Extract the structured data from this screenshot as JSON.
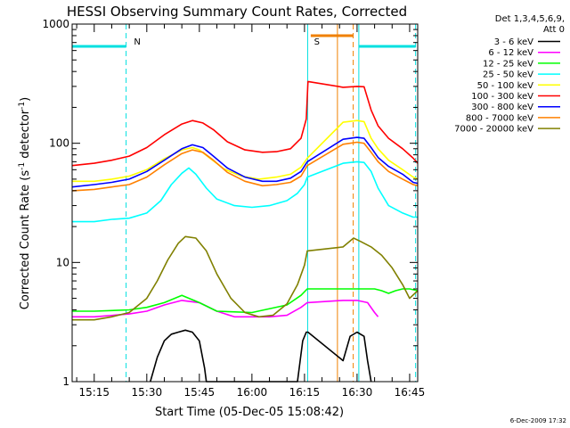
{
  "chart_data": {
    "type": "line",
    "title": "HESSI Observing Summary Count Rates, Corrected",
    "xlabel": "Start Time (05-Dec-05 15:08:42)",
    "ylabel_main": "Corrected Count Rate (s",
    "ylabel_sup1": "-1",
    "ylabel_mid": " detector",
    "ylabel_sup2": "-1",
    "ylabel_end": ")",
    "y_scale": "log",
    "ylim": [
      1,
      1000
    ],
    "y_ticks": [
      {
        "value": 1,
        "label": "1"
      },
      {
        "value": 10,
        "label": "10"
      },
      {
        "value": 100,
        "label": "100"
      },
      {
        "value": 1000,
        "label": "1000"
      }
    ],
    "x_unit": "minutes of day",
    "xlim": [
      908.7,
      1007.3
    ],
    "x_ticks": [
      {
        "value": 915,
        "label": "15:15"
      },
      {
        "value": 930,
        "label": "15:30"
      },
      {
        "value": 945,
        "label": "15:45"
      },
      {
        "value": 960,
        "label": "16:00"
      },
      {
        "value": 975,
        "label": "16:15"
      },
      {
        "value": 990,
        "label": "16:30"
      },
      {
        "value": 1005,
        "label": "16:45"
      }
    ],
    "legend": {
      "position": "right",
      "header_line1": "Det 1,3,4,5,6,9,",
      "header_line2": "Att 0"
    },
    "night_intervals": [
      [
        924.1,
        975.9
      ],
      [
        1006.7,
        1007.3
      ]
    ],
    "saa_interval": [
      984.4,
      988.9
    ],
    "annotations": [
      {
        "label": "N",
        "color": "#00e0e0",
        "x": 924.8
      },
      {
        "label": "S",
        "color": "#f08000",
        "x": 976.2
      }
    ],
    "series": [
      {
        "name": "3 - 6 keV",
        "color": "#000000",
        "points": [
          [
            931,
            1.0
          ],
          [
            933,
            1.6
          ],
          [
            935,
            2.2
          ],
          [
            937,
            2.5
          ],
          [
            939,
            2.6
          ],
          [
            941,
            2.7
          ],
          [
            943,
            2.6
          ],
          [
            945,
            2.2
          ],
          [
            946.5,
            1.3
          ],
          [
            947,
            1.0
          ],
          [
            973,
            1.0
          ],
          [
            974.5,
            2.2
          ],
          [
            975.5,
            2.6
          ],
          [
            976,
            2.6
          ],
          [
            986,
            1.5
          ],
          [
            988,
            2.4
          ],
          [
            990,
            2.6
          ],
          [
            992,
            2.4
          ],
          [
            993,
            1.5
          ],
          [
            994,
            1.0
          ]
        ]
      },
      {
        "name": "6 - 12 keV",
        "color": "#ff00ff",
        "points": [
          [
            908.7,
            3.5
          ],
          [
            915,
            3.5
          ],
          [
            925,
            3.7
          ],
          [
            930,
            3.9
          ],
          [
            935,
            4.4
          ],
          [
            940,
            4.8
          ],
          [
            945,
            4.6
          ],
          [
            950,
            3.9
          ],
          [
            955,
            3.5
          ],
          [
            965,
            3.5
          ],
          [
            970,
            3.6
          ],
          [
            974,
            4.2
          ],
          [
            975.8,
            4.6
          ],
          [
            986,
            4.8
          ],
          [
            990,
            4.8
          ],
          [
            993,
            4.6
          ],
          [
            995,
            3.8
          ],
          [
            996,
            3.5
          ]
        ]
      },
      {
        "name": "12 - 25 keV",
        "color": "#00ff00",
        "points": [
          [
            908.7,
            3.9
          ],
          [
            915,
            3.9
          ],
          [
            925,
            4.0
          ],
          [
            930,
            4.2
          ],
          [
            935,
            4.6
          ],
          [
            940,
            5.3
          ],
          [
            945,
            4.6
          ],
          [
            950,
            3.9
          ],
          [
            960,
            3.8
          ],
          [
            970,
            4.4
          ],
          [
            974,
            5.3
          ],
          [
            975.8,
            6.0
          ],
          [
            986,
            6.0
          ],
          [
            995,
            6.0
          ],
          [
            997,
            5.8
          ],
          [
            999,
            5.5
          ],
          [
            1001,
            5.8
          ],
          [
            1003,
            6.0
          ],
          [
            1005,
            6.0
          ],
          [
            1007.3,
            5.8
          ]
        ]
      },
      {
        "name": "25 - 50 keV",
        "color": "#00ffff",
        "points": [
          [
            908.7,
            22
          ],
          [
            915,
            22
          ],
          [
            920,
            23
          ],
          [
            925,
            23.5
          ],
          [
            930,
            26
          ],
          [
            934,
            33
          ],
          [
            937,
            45
          ],
          [
            940,
            56
          ],
          [
            942,
            62
          ],
          [
            944,
            55
          ],
          [
            947,
            42
          ],
          [
            950,
            34
          ],
          [
            955,
            30
          ],
          [
            960,
            29
          ],
          [
            965,
            30
          ],
          [
            970,
            33
          ],
          [
            973,
            38
          ],
          [
            975,
            45
          ],
          [
            975.8,
            52
          ],
          [
            986,
            68
          ],
          [
            990,
            70
          ],
          [
            992,
            69
          ],
          [
            994,
            58
          ],
          [
            996,
            42
          ],
          [
            999,
            30
          ],
          [
            1003,
            26
          ],
          [
            1006,
            24
          ],
          [
            1007.3,
            24
          ]
        ]
      },
      {
        "name": "50 - 100 keV",
        "color": "#ffff00",
        "points": [
          [
            908.7,
            48
          ],
          [
            915,
            48
          ],
          [
            920,
            50
          ],
          [
            925,
            53
          ],
          [
            930,
            60
          ],
          [
            935,
            74
          ],
          [
            940,
            88
          ],
          [
            943,
            92
          ],
          [
            945,
            88
          ],
          [
            948,
            75
          ],
          [
            952,
            61
          ],
          [
            957,
            53
          ],
          [
            962,
            50
          ],
          [
            967,
            52
          ],
          [
            971,
            55
          ],
          [
            974,
            63
          ],
          [
            975.8,
            75
          ],
          [
            986,
            150
          ],
          [
            990,
            155
          ],
          [
            992,
            152
          ],
          [
            994,
            110
          ],
          [
            996,
            90
          ],
          [
            999,
            72
          ],
          [
            1003,
            60
          ],
          [
            1006,
            52
          ],
          [
            1007.3,
            50
          ]
        ]
      },
      {
        "name": "100 - 300 keV",
        "color": "#ff0000",
        "points": [
          [
            908.7,
            65
          ],
          [
            915,
            68
          ],
          [
            920,
            72
          ],
          [
            925,
            78
          ],
          [
            930,
            92
          ],
          [
            935,
            118
          ],
          [
            940,
            145
          ],
          [
            943,
            155
          ],
          [
            946,
            148
          ],
          [
            949,
            130
          ],
          [
            953,
            103
          ],
          [
            958,
            88
          ],
          [
            963,
            84
          ],
          [
            967,
            85
          ],
          [
            971,
            90
          ],
          [
            974,
            110
          ],
          [
            975.5,
            160
          ],
          [
            976,
            330
          ],
          [
            986,
            295
          ],
          [
            990,
            300
          ],
          [
            992,
            298
          ],
          [
            994,
            190
          ],
          [
            996,
            140
          ],
          [
            999,
            110
          ],
          [
            1003,
            90
          ],
          [
            1006,
            75
          ],
          [
            1007.3,
            68
          ]
        ]
      },
      {
        "name": "300 - 800 keV",
        "color": "#0000ff",
        "points": [
          [
            908.7,
            43
          ],
          [
            915,
            45
          ],
          [
            920,
            47
          ],
          [
            925,
            50
          ],
          [
            930,
            58
          ],
          [
            935,
            72
          ],
          [
            940,
            90
          ],
          [
            943,
            97
          ],
          [
            946,
            92
          ],
          [
            949,
            78
          ],
          [
            953,
            62
          ],
          [
            958,
            52
          ],
          [
            963,
            48
          ],
          [
            967,
            48
          ],
          [
            971,
            51
          ],
          [
            974,
            58
          ],
          [
            975.8,
            70
          ],
          [
            986,
            108
          ],
          [
            990,
            112
          ],
          [
            992,
            110
          ],
          [
            994,
            92
          ],
          [
            996,
            76
          ],
          [
            999,
            64
          ],
          [
            1003,
            55
          ],
          [
            1006,
            47
          ],
          [
            1007.3,
            46
          ]
        ]
      },
      {
        "name": "800 - 7000 keV",
        "color": "#ff8000",
        "points": [
          [
            908.7,
            40
          ],
          [
            915,
            41
          ],
          [
            920,
            43
          ],
          [
            925,
            45
          ],
          [
            930,
            52
          ],
          [
            935,
            66
          ],
          [
            940,
            82
          ],
          [
            943,
            88
          ],
          [
            946,
            84
          ],
          [
            949,
            72
          ],
          [
            953,
            57
          ],
          [
            958,
            48
          ],
          [
            963,
            44
          ],
          [
            967,
            45
          ],
          [
            971,
            47
          ],
          [
            974,
            53
          ],
          [
            975.8,
            65
          ],
          [
            986,
            98
          ],
          [
            990,
            102
          ],
          [
            992,
            100
          ],
          [
            994,
            84
          ],
          [
            996,
            70
          ],
          [
            999,
            58
          ],
          [
            1003,
            50
          ],
          [
            1006,
            45
          ],
          [
            1007.3,
            44
          ]
        ]
      },
      {
        "name": "7000 - 20000 keV",
        "color": "#808000",
        "points": [
          [
            908.7,
            3.3
          ],
          [
            915,
            3.3
          ],
          [
            920,
            3.5
          ],
          [
            925,
            3.8
          ],
          [
            930,
            5.0
          ],
          [
            933,
            7.0
          ],
          [
            936,
            10.5
          ],
          [
            939,
            14.5
          ],
          [
            941,
            16.5
          ],
          [
            944,
            16.0
          ],
          [
            947,
            12.5
          ],
          [
            950,
            8.0
          ],
          [
            954,
            5.0
          ],
          [
            958,
            3.8
          ],
          [
            962,
            3.5
          ],
          [
            966,
            3.6
          ],
          [
            970,
            4.5
          ],
          [
            973,
            6.5
          ],
          [
            975,
            9.5
          ],
          [
            975.8,
            12.5
          ],
          [
            986,
            13.5
          ],
          [
            989,
            16
          ],
          [
            991,
            15
          ],
          [
            994,
            13.5
          ],
          [
            997,
            11.5
          ],
          [
            1000,
            9.0
          ],
          [
            1003,
            6.5
          ],
          [
            1005,
            5.0
          ],
          [
            1007.3,
            5.8
          ]
        ]
      }
    ]
  },
  "timestamp": "6-Dec-2009 17:32"
}
